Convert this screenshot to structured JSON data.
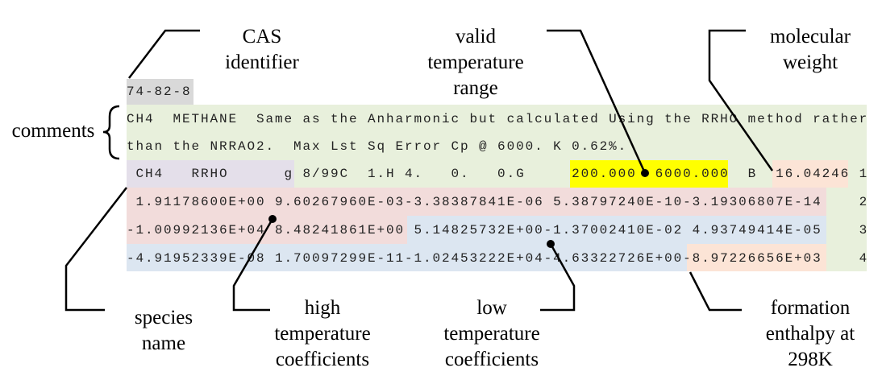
{
  "record": {
    "cas": "74-82-8",
    "comment_1": "CH4  METHANE  Same as the Anharmonic but calculated Using the RRHO method rather",
    "comment_2": "than the NRRAO2.  Max Lst Sq Error Cp @ 6000. K 0.62%.",
    "line_1": " CH4   RRHO      g 8/99C  1.H 4.   0.   0.G     200.000  6000.000  B  16.04246 1",
    "line_2": " 1.91178600E+00 9.60267960E-03-3.38387841E-06 5.38797240E-10-3.19306807E-14    2",
    "line_3": "-1.00992136E+04 8.48241861E+00 5.14825732E+00-1.37002410E-02 4.93749414E-05    3",
    "line_4": "-4.91952339E-08 1.70097299E-11-1.02453222E+04-4.63322726E+00-8.97226656E+03    4"
  },
  "labels": {
    "cas": [
      "CAS",
      "identifier"
    ],
    "temp_range": [
      "valid",
      "temperature",
      "range"
    ],
    "mol_weight": [
      "molecular",
      "weight"
    ],
    "comments": "comments",
    "species": [
      "species",
      "name"
    ],
    "high": [
      "high",
      "temperature",
      "coefficients"
    ],
    "low": [
      "low",
      "temperature",
      "coefficients"
    ],
    "formation": [
      "formation",
      "enthalpy at",
      "298K"
    ]
  },
  "colors": {
    "cas": "#d9d9d9",
    "comments": "#e8f0dc",
    "species": "#e4dfea",
    "temp_range": "#ffff00",
    "mol_weight": "#fce4d6",
    "high_coeffs": "#f2dcdb",
    "low_coeffs": "#dce6f1",
    "formation": "#fce4d6"
  }
}
